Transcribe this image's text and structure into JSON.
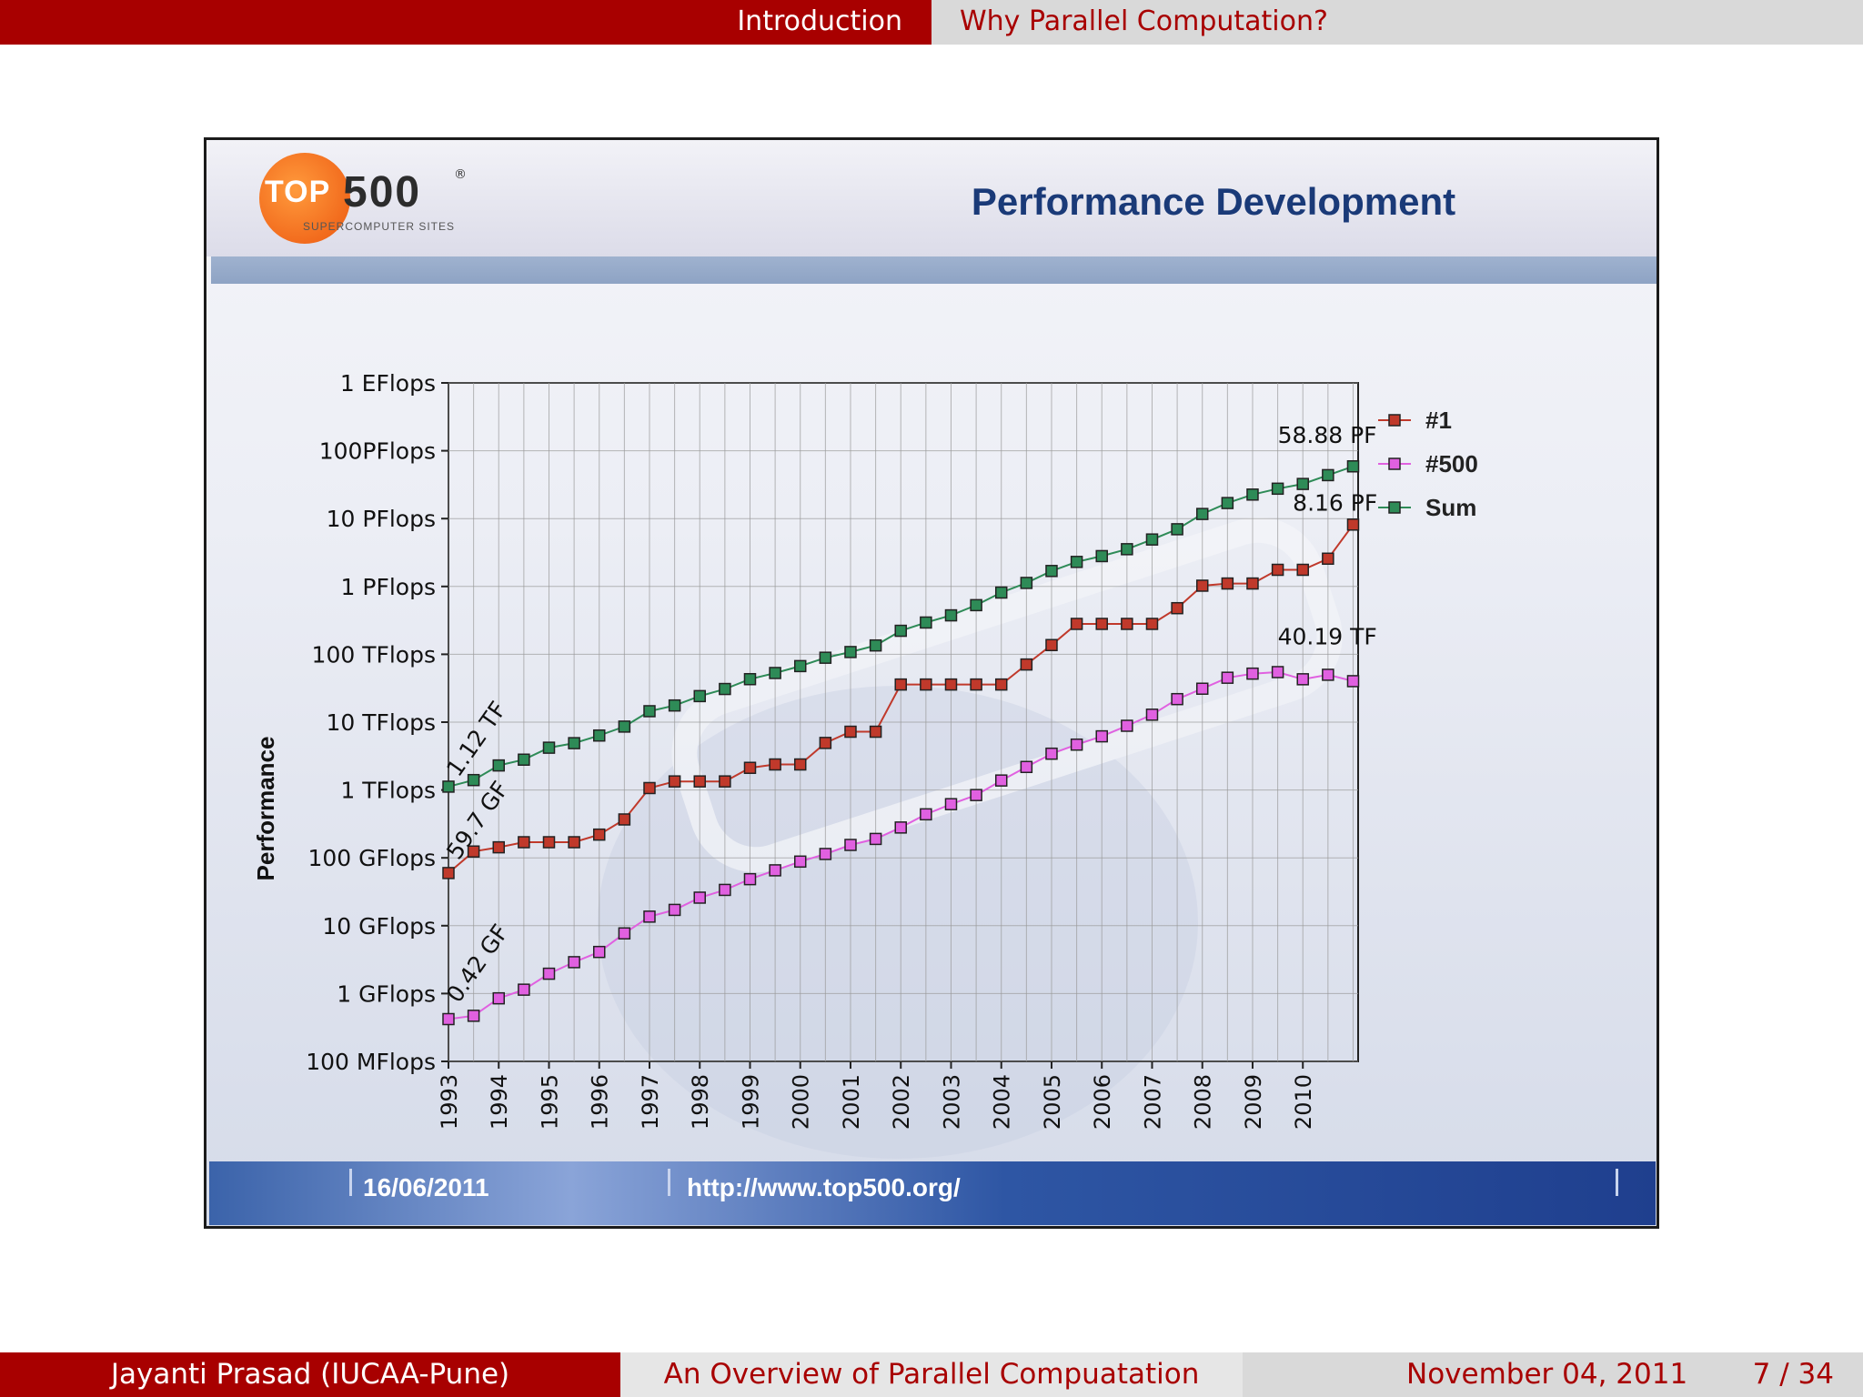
{
  "header": {
    "section": "Introduction",
    "subsection": "Why Parallel Computation?"
  },
  "footer": {
    "author": "Jayanti Prasad  (IUCAA-Pune)",
    "title": "An Overview of Parallel Compuatation",
    "date": "November 04, 2011",
    "page": "7 / 34"
  },
  "slide_image": {
    "logo_top": "TOP",
    "logo_500": "500",
    "logo_reg": "®",
    "logo_sub": "SUPERCOMPUTER SITES",
    "date": "16/06/2011",
    "url": "http://www.top500.org/",
    "colors": {
      "series1": "#c0392b",
      "series500": "#e060e0",
      "sum": "#2e8b57",
      "banner": "#2e56a4"
    }
  },
  "chart_data": {
    "type": "line",
    "title": "Performance Development",
    "xlabel": "",
    "ylabel": "Performance",
    "yscale": "log",
    "ylim": [
      0.1,
      1000000000
    ],
    "y_tick_values": [
      0.1,
      1,
      10,
      100,
      1000,
      10000,
      100000,
      1000000,
      10000000,
      100000000,
      1000000000
    ],
    "y_tick_labels": [
      "100 MFlops",
      "1 GFlops",
      "10 GFlops",
      "100 GFlops",
      "1 TFlops",
      "10 TFlops",
      "100 TFlops",
      "1 PFlops",
      "10 PFlops",
      "100PFlops",
      "1 EFlops"
    ],
    "x_tick_labels": [
      "1993",
      "1994",
      "1995",
      "1996",
      "1997",
      "1998",
      "1999",
      "2000",
      "2001",
      "2002",
      "2003",
      "2004",
      "2005",
      "2006",
      "2007",
      "2008",
      "2009",
      "2010"
    ],
    "x": [
      1993.0,
      1993.5,
      1994.0,
      1994.5,
      1995.0,
      1995.5,
      1996.0,
      1996.5,
      1997.0,
      1997.5,
      1998.0,
      1998.5,
      1999.0,
      1999.5,
      2000.0,
      2000.5,
      2001.0,
      2001.5,
      2002.0,
      2002.5,
      2003.0,
      2003.5,
      2004.0,
      2004.5,
      2005.0,
      2005.5,
      2006.0,
      2006.5,
      2007.0,
      2007.5,
      2008.0,
      2008.5,
      2009.0,
      2009.5,
      2010.0,
      2010.5,
      2011.0
    ],
    "x_range": [
      1993,
      2011.1
    ],
    "legend_position": "right",
    "series": [
      {
        "name": "#1",
        "color": "#c0392b",
        "values": [
          59.7,
          124,
          143,
          170,
          170,
          170,
          220,
          368,
          1068,
          1338,
          1338,
          1338,
          2121,
          2379,
          2379,
          4938,
          7226,
          7226,
          35860,
          35860,
          35860,
          35860,
          35860,
          70720,
          136800,
          280600,
          280600,
          280600,
          280600,
          478200,
          1026000,
          1105000,
          1105000,
          1759000,
          1759000,
          2566000,
          8162000
        ]
      },
      {
        "name": "#500",
        "color": "#e060e0",
        "values": [
          0.42,
          0.47,
          0.85,
          1.14,
          1.96,
          2.9,
          4.1,
          7.7,
          13.6,
          17.1,
          25.9,
          33.7,
          48.5,
          65.5,
          88.1,
          114,
          155,
          190,
          280,
          438,
          618,
          842,
          1380,
          2186,
          3428,
          4663,
          6180,
          8840,
          12880,
          21840,
          31110,
          45130,
          51880,
          54650,
          42850,
          49900,
          40190
        ]
      },
      {
        "name": "Sum",
        "color": "#2e8b57",
        "values": [
          1120,
          1400,
          2300,
          2800,
          4200,
          4900,
          6350,
          8600,
          14500,
          17600,
          24200,
          30800,
          43000,
          53000,
          67000,
          89000,
          108000,
          135000,
          222000,
          294000,
          375000,
          530000,
          813000,
          1127000,
          1690000,
          2300000,
          2800000,
          3540000,
          4920000,
          6970000,
          11700000,
          16950000,
          22600000,
          27600000,
          32400000,
          43700000,
          58880000
        ]
      }
    ],
    "annotations": [
      {
        "text": "1.12 TF",
        "x": 1993.2,
        "y": 1500,
        "rotate": -55
      },
      {
        "text": "59.7 GF",
        "x": 1993.2,
        "y": 90,
        "rotate": -55
      },
      {
        "text": "0.42 GF",
        "x": 1993.2,
        "y": 0.7,
        "rotate": -55
      },
      {
        "text": "58.88 PF",
        "x": 2009.5,
        "y": 130000000,
        "rotate": 0
      },
      {
        "text": "8.16 PF",
        "x": 2009.8,
        "y": 13000000,
        "rotate": 0
      },
      {
        "text": "40.19 TF",
        "x": 2009.5,
        "y": 140000,
        "rotate": 0
      }
    ]
  }
}
